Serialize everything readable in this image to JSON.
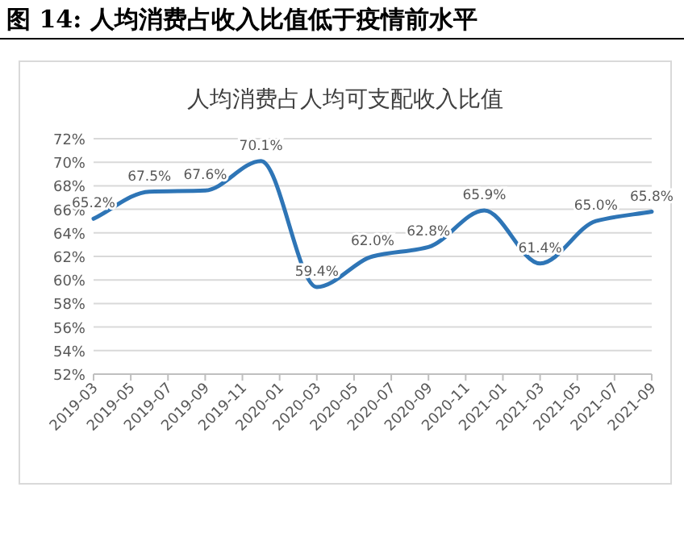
{
  "chart_data": {
    "type": "line",
    "title": "图 14:  人均消费占收入比值低于疫情前水平",
    "subtitle": "人均消费占人均可支配收入比值",
    "x": [
      "2019-03",
      "2019-06",
      "2019-09",
      "2019-12",
      "2020-03",
      "2020-06",
      "2020-09",
      "2020-12",
      "2021-03",
      "2021-06",
      "2021-09"
    ],
    "series": [
      {
        "color": "#2e75b6",
        "values": [
          65.2,
          67.5,
          67.6,
          70.1,
          59.4,
          62.0,
          62.8,
          65.9,
          61.4,
          65.0,
          65.8
        ],
        "value_labels": [
          "65.2%",
          "67.5%",
          "67.6%",
          "70.1%",
          "59.4%",
          "62.0%",
          "62.8%",
          "65.9%",
          "61.4%",
          "65.0%",
          "65.8%"
        ]
      }
    ],
    "xlim": [
      "2019-03",
      "2021-09"
    ],
    "xticks": [
      "2019-03",
      "2019-05",
      "2019-07",
      "2019-09",
      "2019-11",
      "2020-01",
      "2020-03",
      "2020-05",
      "2020-07",
      "2020-09",
      "2020-11",
      "2021-01",
      "2021-03",
      "2021-05",
      "2021-07",
      "2021-09"
    ],
    "ylim": [
      52,
      72
    ],
    "yticks": [
      {
        "value": 52,
        "label": "52%"
      },
      {
        "value": 54,
        "label": "54%"
      },
      {
        "value": 56,
        "label": "56%"
      },
      {
        "value": 58,
        "label": "58%"
      },
      {
        "value": 60,
        "label": "60%"
      },
      {
        "value": 62,
        "label": "62%"
      },
      {
        "value": 64,
        "label": "64%"
      },
      {
        "value": 66,
        "label": "66%"
      },
      {
        "value": 68,
        "label": "68%"
      },
      {
        "value": 70,
        "label": "70%"
      },
      {
        "value": 72,
        "label": "72%"
      }
    ],
    "grid": "y",
    "marker": "none",
    "line_style": "solid"
  }
}
